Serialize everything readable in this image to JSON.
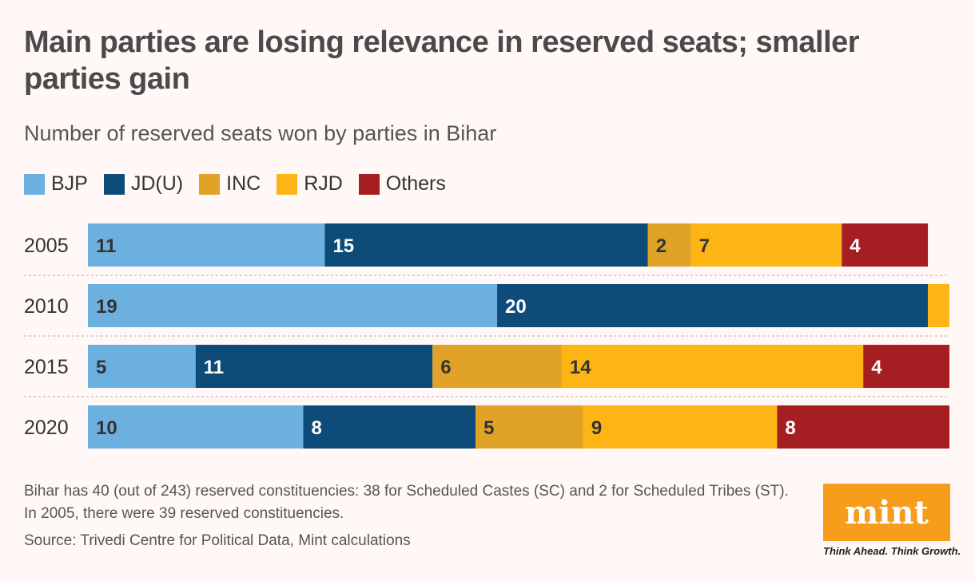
{
  "title": "Main parties are losing relevance in reserved seats; smaller parties gain",
  "subtitle": "Number of reserved seats won by parties in Bihar",
  "note": "Bihar has 40 (out of 243) reserved constituencies: 38 for Scheduled Castes (SC) and 2 for Scheduled Tribes (ST). In 2005, there were 39 reserved constituencies.",
  "source": "Source: Trivedi Centre for Political Data, Mint calculations",
  "logo": {
    "text": "mint",
    "tagline": "Think Ahead. Think Growth."
  },
  "chart_data": {
    "type": "bar",
    "orientation": "horizontal",
    "stacked": true,
    "categories": [
      "2005",
      "2010",
      "2015",
      "2020"
    ],
    "xlim": [
      0,
      40
    ],
    "legend_placement": "top-left",
    "series": [
      {
        "name": "BJP",
        "color": "#6cb0e0",
        "label_color": "#333333",
        "values": [
          11,
          19,
          5,
          10
        ]
      },
      {
        "name": "JD(U)",
        "color": "#0d4b78",
        "label_color": "#ffffff",
        "values": [
          15,
          20,
          11,
          8
        ]
      },
      {
        "name": "INC",
        "color": "#e0a227",
        "label_color": "#333333",
        "values": [
          2,
          0,
          6,
          5
        ]
      },
      {
        "name": "RJD",
        "color": "#fdb515",
        "label_color": "#333333",
        "values": [
          7,
          1,
          14,
          9
        ]
      },
      {
        "name": "Others",
        "color": "#a51e22",
        "label_color": "#ffffff",
        "values": [
          4,
          0,
          4,
          8
        ]
      }
    ]
  }
}
